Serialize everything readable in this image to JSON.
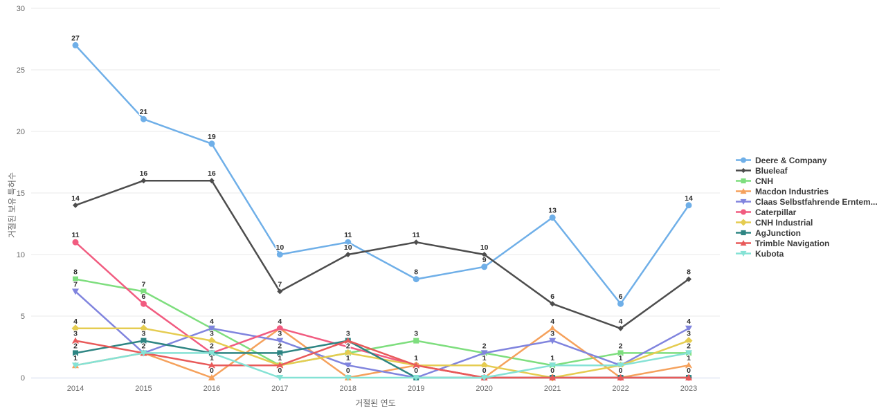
{
  "chart_data": {
    "type": "line",
    "title": "",
    "xlabel": "거절된 연도",
    "ylabel": "거절된 보유 특허수",
    "x": [
      2014,
      2015,
      2016,
      2017,
      2018,
      2019,
      2020,
      2021,
      2022,
      2023
    ],
    "ylim": [
      0,
      30
    ],
    "yticks": [
      0,
      5,
      10,
      15,
      20,
      25,
      30
    ],
    "grid": true,
    "legend_position": "right",
    "point_labels_visible": true,
    "series": [
      {
        "name": "Deere & Company",
        "slug": "deere-company",
        "color": "#6FAFE8",
        "marker": "circle",
        "values": [
          27,
          21,
          19,
          10,
          11,
          8,
          9,
          13,
          6,
          14
        ]
      },
      {
        "name": "Blueleaf",
        "slug": "blueleaf",
        "color": "#4D4D4D",
        "marker": "diamond-small",
        "values": [
          14,
          16,
          16,
          7,
          10,
          11,
          10,
          6,
          4,
          8
        ]
      },
      {
        "name": "CNH",
        "slug": "cnh",
        "color": "#7EDE7E",
        "marker": "square",
        "values": [
          8,
          7,
          4,
          1,
          2,
          3,
          2,
          1,
          2,
          2
        ]
      },
      {
        "name": "Macdon Industries",
        "slug": "macdon-industries",
        "color": "#F5A15C",
        "marker": "triangle-up",
        "values": [
          1,
          2,
          0,
          4,
          0,
          1,
          0,
          4,
          0,
          1
        ]
      },
      {
        "name": "Claas Selbstfahrende Erntem...",
        "slug": "claas-selbstfahrende",
        "color": "#8084DE",
        "marker": "triangle-down",
        "values": [
          7,
          2,
          4,
          3,
          1,
          0,
          2,
          3,
          1,
          4
        ]
      },
      {
        "name": "Caterpillar",
        "slug": "caterpillar",
        "color": "#F15C80",
        "marker": "circle",
        "values": [
          11,
          6,
          2,
          4,
          null,
          1,
          0,
          0,
          0,
          0
        ]
      },
      {
        "name": "CNH Industrial",
        "slug": "cnh-industrial",
        "color": "#E5CC50",
        "marker": "diamond",
        "values": [
          4,
          4,
          3,
          1,
          2,
          1,
          1,
          0,
          1,
          3
        ]
      },
      {
        "name": "AgJunction",
        "slug": "agjunction",
        "color": "#2E8583",
        "marker": "square",
        "values": [
          2,
          3,
          2,
          2,
          3,
          0,
          0,
          0,
          0,
          0
        ]
      },
      {
        "name": "Trimble Navigation",
        "slug": "trimble-navigation",
        "color": "#E85A5A",
        "marker": "triangle-up",
        "values": [
          3,
          2,
          1,
          1,
          3,
          1,
          0,
          0,
          0,
          0
        ]
      },
      {
        "name": "Kubota",
        "slug": "kubota",
        "color": "#85E2D5",
        "marker": "triangle-down",
        "values": [
          1,
          2,
          2,
          0,
          0,
          0,
          0,
          1,
          1,
          2
        ]
      }
    ],
    "axis_colors": {
      "grid": "#e8e8e8",
      "axis_line": "#ccd6eb",
      "tick_text": "#666666",
      "label_text": "#2e2e2e"
    }
  }
}
